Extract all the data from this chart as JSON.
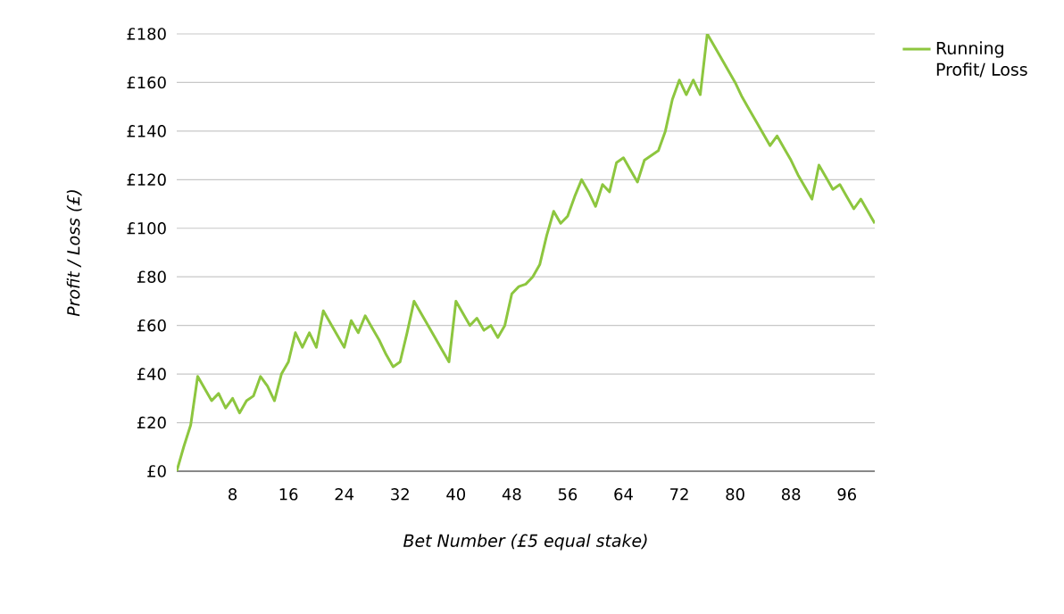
{
  "chart_data": {
    "type": "line",
    "xlabel": "Bet Number (£5 equal stake)",
    "ylabel": "Profit / Loss (£)",
    "x": [
      0,
      1,
      2,
      3,
      4,
      5,
      6,
      7,
      8,
      9,
      10,
      11,
      12,
      13,
      14,
      15,
      16,
      17,
      18,
      19,
      20,
      21,
      22,
      23,
      24,
      25,
      26,
      27,
      28,
      29,
      30,
      31,
      32,
      33,
      34,
      35,
      36,
      37,
      38,
      39,
      40,
      41,
      42,
      43,
      44,
      45,
      46,
      47,
      48,
      49,
      50,
      51,
      52,
      53,
      54,
      55,
      56,
      57,
      58,
      59,
      60,
      61,
      62,
      63,
      64,
      65,
      66,
      67,
      68,
      69,
      70,
      71,
      72,
      73,
      74,
      75,
      76,
      77,
      78,
      79,
      80,
      81,
      82,
      83,
      84,
      85,
      86,
      87,
      88,
      89,
      90,
      91,
      92,
      93,
      94,
      95,
      96,
      97,
      98,
      99,
      100
    ],
    "series": [
      {
        "name": "Running Profit/ Loss",
        "color": "#8dc63f",
        "values": [
          0,
          10,
          19,
          39,
          34,
          29,
          32,
          26,
          30,
          24,
          29,
          31,
          39,
          35,
          29,
          40,
          45,
          57,
          51,
          57,
          51,
          66,
          61,
          56,
          51,
          62,
          57,
          64,
          59,
          54,
          48,
          43,
          45,
          57,
          70,
          65,
          60,
          55,
          50,
          45,
          70,
          65,
          60,
          63,
          58,
          60,
          55,
          60,
          73,
          76,
          77,
          80,
          85,
          97,
          107,
          102,
          105,
          113,
          120,
          115,
          109,
          118,
          115,
          127,
          129,
          124,
          119,
          128,
          130,
          132,
          140,
          153,
          161,
          155,
          161,
          155,
          180,
          175,
          170,
          165,
          160,
          154,
          149,
          144,
          139,
          134,
          138,
          133,
          128,
          122,
          117,
          112,
          126,
          121,
          116,
          118,
          113,
          108,
          112,
          107,
          102
        ]
      }
    ],
    "xlim": [
      0,
      100
    ],
    "xticks": [
      8,
      16,
      24,
      32,
      40,
      48,
      56,
      64,
      72,
      80,
      88,
      96
    ],
    "ylim": [
      0,
      180
    ],
    "yticks": [
      {
        "value": 0,
        "label": "£0"
      },
      {
        "value": 20,
        "label": "£20"
      },
      {
        "value": 40,
        "label": "£40"
      },
      {
        "value": 60,
        "label": "£60"
      },
      {
        "value": 80,
        "label": "£80"
      },
      {
        "value": 100,
        "label": "£100"
      },
      {
        "value": 120,
        "label": "£120"
      },
      {
        "value": 140,
        "label": "£140"
      },
      {
        "value": 160,
        "label": "£160"
      },
      {
        "value": 180,
        "label": "£180"
      }
    ],
    "grid": "y",
    "legend": "right",
    "marker": "none",
    "line_style": "solid"
  }
}
